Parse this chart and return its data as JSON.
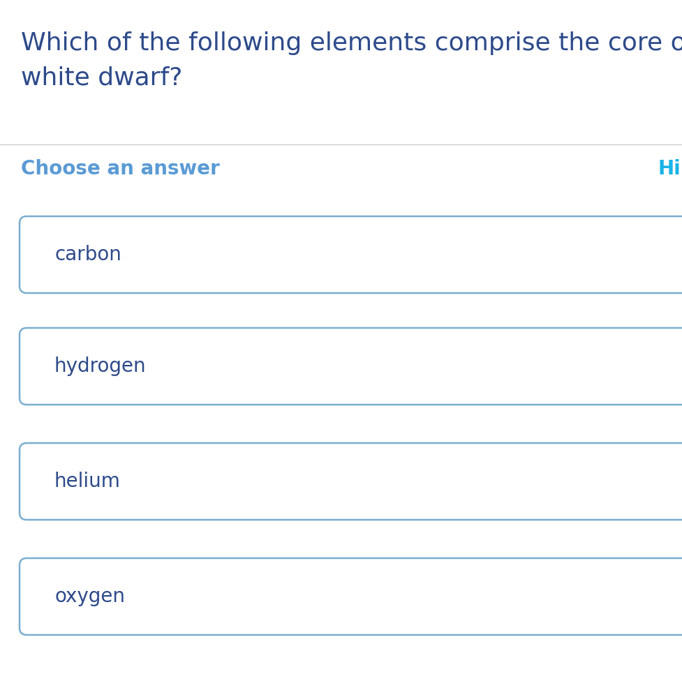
{
  "question_line1": "Which of the following elements comprise the core of a",
  "question_line2": "white dwarf?",
  "question_color": "#2d4a8a",
  "question_fontsize": 26,
  "section_label": "Choose an answer",
  "section_label_color": "#5b9bd5",
  "section_label_fontsize": 20,
  "hint_label": "Hi",
  "hint_color": "#1ab3e8",
  "hint_fontsize": 20,
  "choices": [
    "carbon",
    "hydrogen",
    "helium",
    "oxygen"
  ],
  "choice_fontsize": 20,
  "choice_text_color": "#2d4a8a",
  "box_border_color": "#7aaecf",
  "box_fill_color": "#ffffff",
  "background_color": "#ffffff",
  "divider_color": "#cccccc"
}
